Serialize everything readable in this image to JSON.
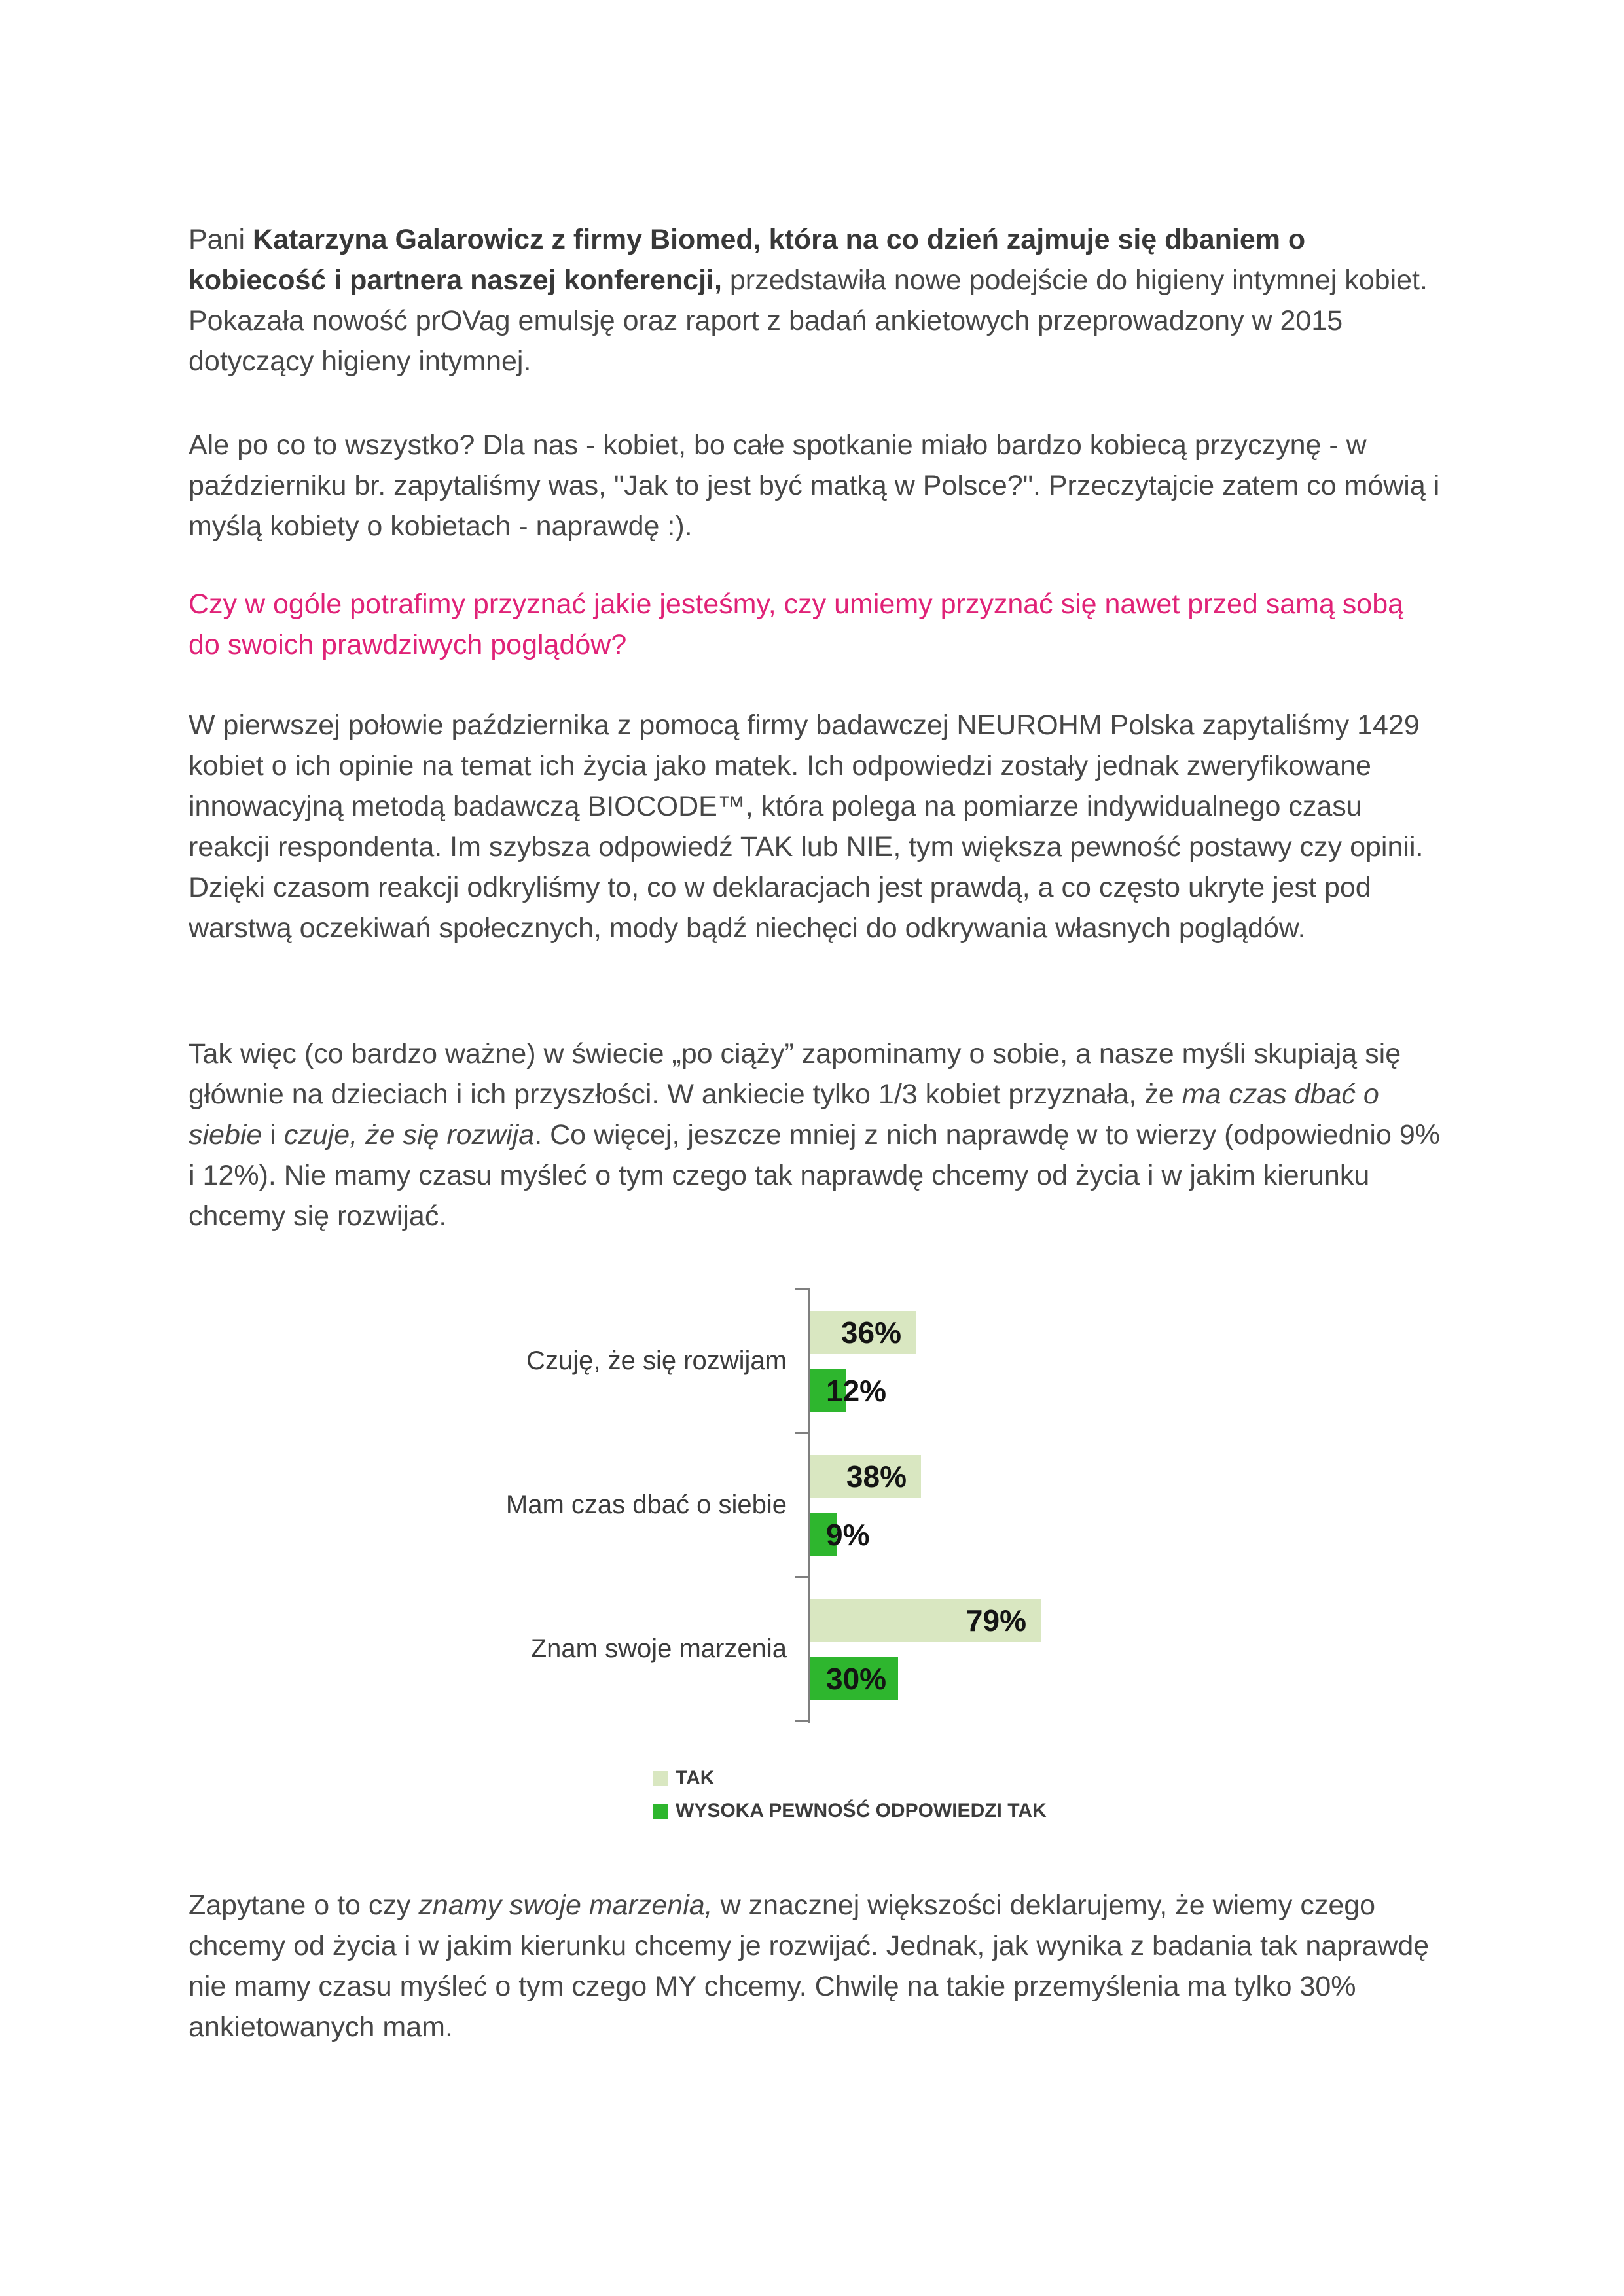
{
  "colors": {
    "accent_pink": "#e02277",
    "body_text": "#474747",
    "chart_axis_gray": "#7f7f7f",
    "tak_light_green": "#d9e7c1",
    "wysoka_dark_green": "#2eb62e"
  },
  "document": {
    "paragraphs": {
      "p1": {
        "runs": [
          {
            "text": "Pani "
          },
          {
            "text": "Katarzyna Galarowicz z firmy Biomed, która na co dzień zajmuje się dbaniem o kobiecość i partnera naszej konferencji,",
            "style": "bold"
          },
          {
            "text": " przedstawiła nowe podejście do higieny intymnej kobiet. Pokazała nowość prOVag emulsję oraz raport z badań ankietowych przeprowadzony w 2015 dotyczący higieny intymnej."
          }
        ]
      },
      "p2": {
        "text": "Ale po co to wszystko? Dla nas - kobiet, bo całe spotkanie miało bardzo kobiecą przyczynę - w październiku br. zapytaliśmy was, \"Jak to jest być matką w Polsce?\". Przeczytajcie zatem co mówią i myślą kobiety o kobietach - naprawdę :)."
      },
      "heading": {
        "text": "Czy w ogóle potrafimy przyznać jakie jesteśmy, czy umiemy przyznać się nawet przed samą sobą do swoich prawdziwych poglądów?"
      },
      "p3": {
        "text": "W pierwszej połowie października z pomocą firmy badawczej NEUROHM Polska zapytaliśmy 1429 kobiet o ich opinie na temat ich życia jako matek. Ich odpowiedzi zostały jednak zweryfikowane innowacyjną metodą badawczą BIOCODE™, która polega na pomiarze indywidualnego czasu reakcji respondenta. Im szybsza odpowiedź TAK lub NIE, tym większa pewność postawy czy opinii. Dzięki czasom reakcji odkryliśmy to, co w deklaracjach jest prawdą, a co często ukryte jest pod warstwą oczekiwań społecznych, mody bądź niechęci do odkrywania własnych poglądów."
      },
      "p4": {
        "runs": [
          {
            "text": "Tak więc (co bardzo ważne) w świecie „po ciąży” zapominamy o sobie, a nasze myśli skupiają się głównie na dzieciach i ich przyszłości. W ankiecie tylko 1/3 kobiet przyznała, że "
          },
          {
            "text": "ma czas dbać o siebie",
            "style": "italic"
          },
          {
            "text": " i "
          },
          {
            "text": "czuje, że się rozwija",
            "style": "italic"
          },
          {
            "text": ". Co więcej, jeszcze mniej z nich naprawdę w to wierzy (odpowiednio 9% i 12%). Nie mamy czasu myśleć o tym czego tak naprawdę chcemy od życia i w jakim kierunku chcemy się rozwijać."
          }
        ]
      },
      "p5": {
        "runs": [
          {
            "text": "Zapytane o to czy "
          },
          {
            "text": "znamy swoje marzenia,",
            "style": "italic"
          },
          {
            "text": " w znacznej większości deklarujemy, że wiemy czego chcemy od życia i w jakim kierunku chcemy je rozwijać. Jednak, jak wynika z badania tak naprawdę nie mamy czasu myśleć o tym czego MY chcemy. Chwilę na takie przemyślenia ma tylko 30% ankietowanych mam."
          }
        ]
      }
    }
  },
  "chart_data": {
    "type": "bar",
    "orientation": "horizontal",
    "title": "",
    "xlabel": "",
    "ylabel": "",
    "categories": [
      "Czuję, że się rozwijam",
      "Mam czas dbać o siebie",
      "Znam swoje marzenia"
    ],
    "series": [
      {
        "name": "TAK",
        "color": "#d9e7c1",
        "values": [
          36,
          38,
          79
        ]
      },
      {
        "name": "WYSOKA PEWNOŚĆ ODPOWIEDZI TAK",
        "color": "#2eb62e",
        "values": [
          12,
          9,
          30
        ]
      }
    ],
    "value_suffix": "%",
    "value_labels": "shown",
    "xlim": [
      0,
      100
    ],
    "grid": false,
    "legend_position": "bottom-left"
  }
}
